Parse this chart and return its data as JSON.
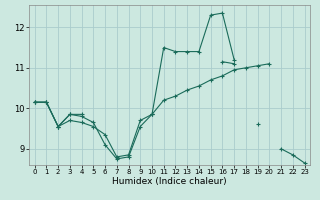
{
  "background_color": "#cce8e0",
  "grid_color": "#aacccc",
  "line_color": "#1a6b5a",
  "marker_color": "#1a6b5a",
  "xlabel": "Humidex (Indice chaleur)",
  "xlim": [
    -0.5,
    23.5
  ],
  "ylim": [
    8.6,
    12.55
  ],
  "xticks": [
    0,
    1,
    2,
    3,
    4,
    5,
    6,
    7,
    8,
    9,
    10,
    11,
    12,
    13,
    14,
    15,
    16,
    17,
    18,
    19,
    20,
    21,
    22,
    23
  ],
  "yticks": [
    9,
    10,
    11,
    12
  ],
  "series": [
    {
      "segments": [
        [
          [
            0,
            10.15
          ],
          [
            1,
            10.15
          ],
          [
            2,
            9.55
          ],
          [
            3,
            9.7
          ],
          [
            4,
            9.65
          ],
          [
            5,
            9.55
          ],
          [
            6,
            9.35
          ],
          [
            7,
            8.8
          ],
          [
            8,
            8.85
          ],
          [
            9,
            9.7
          ],
          [
            10,
            9.85
          ],
          [
            11,
            10.2
          ],
          [
            12,
            10.3
          ],
          [
            13,
            10.45
          ],
          [
            14,
            10.55
          ],
          [
            15,
            10.7
          ],
          [
            16,
            10.8
          ],
          [
            17,
            10.95
          ],
          [
            18,
            11.0
          ],
          [
            19,
            11.05
          ],
          [
            20,
            11.1
          ]
        ]
      ]
    },
    {
      "segments": [
        [
          [
            0,
            10.15
          ],
          [
            1,
            10.15
          ],
          [
            2,
            9.55
          ],
          [
            3,
            9.85
          ],
          [
            4,
            9.8
          ],
          [
            5,
            9.65
          ],
          [
            6,
            9.1
          ],
          [
            7,
            8.75
          ],
          [
            8,
            8.8
          ],
          [
            9,
            9.55
          ],
          [
            10,
            9.85
          ],
          [
            11,
            11.5
          ],
          [
            12,
            11.4
          ],
          [
            13,
            11.4
          ],
          [
            14,
            11.4
          ],
          [
            15,
            12.3
          ],
          [
            16,
            12.35
          ],
          [
            17,
            11.2
          ]
        ]
      ]
    },
    {
      "segments": [
        [
          [
            0,
            10.15
          ],
          [
            1,
            10.15
          ],
          [
            2,
            9.55
          ],
          [
            3,
            9.85
          ],
          [
            4,
            9.85
          ]
        ],
        [
          [
            10,
            9.85
          ]
        ],
        [
          [
            16,
            11.15
          ],
          [
            17,
            11.1
          ]
        ],
        [
          [
            19,
            9.6
          ]
        ],
        [
          [
            21,
            9.0
          ],
          [
            22,
            8.85
          ],
          [
            23,
            8.65
          ]
        ]
      ]
    }
  ]
}
